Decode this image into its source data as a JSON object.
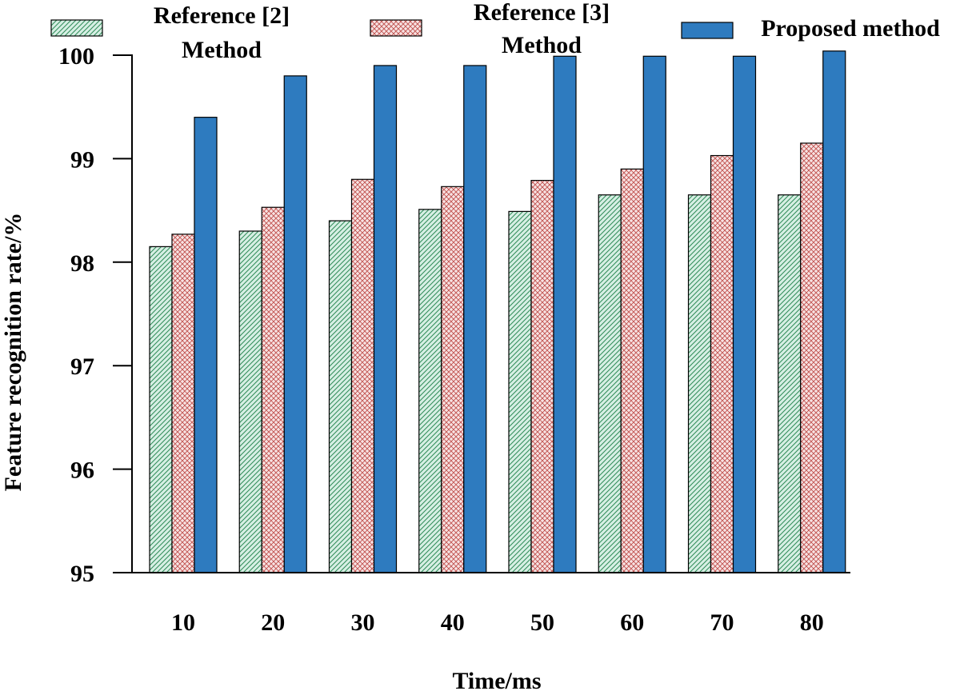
{
  "chart_data": {
    "type": "bar",
    "xlabel": "Time/ms",
    "ylabel": "Feature recognition rate/%",
    "categories": [
      "10",
      "20",
      "30",
      "40",
      "50",
      "60",
      "70",
      "80"
    ],
    "ylim": [
      95,
      100
    ],
    "yticks": [
      "95",
      "96",
      "97",
      "98",
      "99",
      "100"
    ],
    "grid": false,
    "legend_position": "top",
    "series": [
      {
        "name": "Reference [2] Method",
        "name_lines": [
          "Reference [2]",
          "Method"
        ],
        "values": [
          98.15,
          98.3,
          98.4,
          98.51,
          98.49,
          98.65,
          98.65,
          98.65
        ],
        "color": "#d7efe4",
        "hatch": "#2e8b57",
        "pattern": "diagonal"
      },
      {
        "name": "Reference [3] Method",
        "name_lines": [
          "Reference [3]",
          "Method"
        ],
        "values": [
          98.27,
          98.53,
          98.8,
          98.73,
          98.79,
          98.9,
          99.03,
          99.15
        ],
        "color": "#f7e3e3",
        "hatch": "#c0504d",
        "pattern": "crosshatch"
      },
      {
        "name": "Proposed method",
        "name_lines": [
          "Proposed method"
        ],
        "values": [
          99.4,
          99.8,
          99.9,
          99.9,
          99.99,
          99.99,
          99.99,
          100.04
        ],
        "color": "#2e7bbf",
        "hatch": "",
        "pattern": "solid"
      }
    ]
  }
}
